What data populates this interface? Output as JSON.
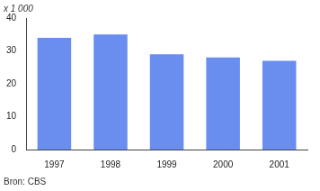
{
  "chart_data": {
    "type": "bar",
    "ylabel": "x 1 000",
    "annotations": [
      "Bron: CBS"
    ],
    "categories": [
      "1997",
      "1998",
      "1999",
      "2000",
      "2001"
    ],
    "values": [
      34,
      35,
      29,
      28,
      27
    ],
    "color": "#6a8ef0",
    "ylim": [
      0,
      40
    ],
    "yticks": [
      0,
      10,
      20,
      30,
      40
    ],
    "grid": false
  }
}
